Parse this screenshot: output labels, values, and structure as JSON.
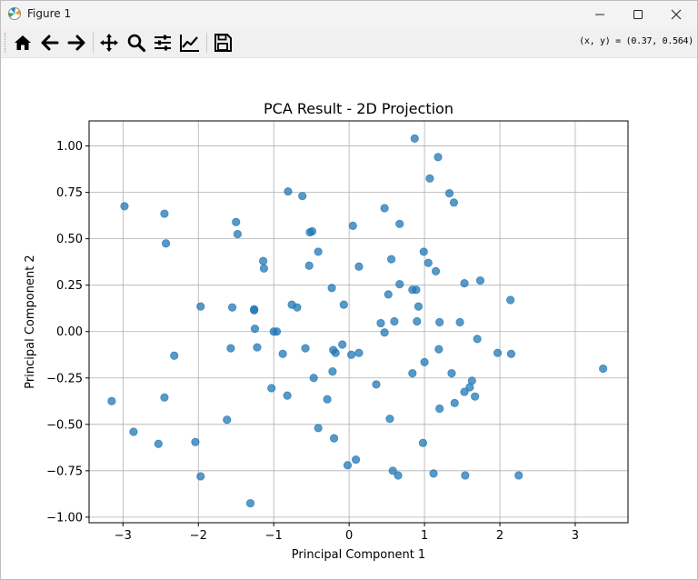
{
  "window": {
    "title": "Figure 1"
  },
  "toolbar": {
    "buttons": [
      {
        "name": "home-icon",
        "tooltip": "Home"
      },
      {
        "name": "back-icon",
        "tooltip": "Back"
      },
      {
        "name": "forward-icon",
        "tooltip": "Forward"
      },
      {
        "name": "pan-icon",
        "tooltip": "Pan"
      },
      {
        "name": "zoom-icon",
        "tooltip": "Zoom"
      },
      {
        "name": "subplots-icon",
        "tooltip": "Subplots"
      },
      {
        "name": "customize-icon",
        "tooltip": "Customize"
      },
      {
        "name": "save-icon",
        "tooltip": "Save"
      }
    ],
    "coordinates": "(x, y) = (0.37, 0.564)"
  },
  "colors": {
    "marker": "#1f77b4",
    "grid": "#b0b0b0",
    "axes": "#000000"
  },
  "chart_data": {
    "type": "scatter",
    "title": "PCA Result - 2D Projection",
    "xlabel": "Principal Component 1",
    "ylabel": "Principal Component 2",
    "xlim": [
      -3.45,
      3.7
    ],
    "ylim": [
      -1.03,
      1.135
    ],
    "xticks": [
      -3,
      -2,
      -1,
      0,
      1,
      2,
      3
    ],
    "xtick_labels": [
      "−3",
      "−2",
      "−1",
      "0",
      "1",
      "2",
      "3"
    ],
    "yticks": [
      -1.0,
      -0.75,
      -0.5,
      -0.25,
      0.0,
      0.25,
      0.5,
      0.75,
      1.0
    ],
    "ytick_labels": [
      "−1.00",
      "−0.75",
      "−0.50",
      "−0.25",
      "0.00",
      "0.25",
      "0.50",
      "0.75",
      "1.00"
    ],
    "grid": true,
    "marker_alpha": 0.75,
    "points": [
      [
        -2.98,
        0.675
      ],
      [
        -2.45,
        0.635
      ],
      [
        -2.43,
        0.475
      ],
      [
        -1.5,
        0.59
      ],
      [
        -1.48,
        0.525
      ],
      [
        -1.14,
        0.38
      ],
      [
        -1.13,
        0.34
      ],
      [
        -0.81,
        0.755
      ],
      [
        -0.62,
        0.73
      ],
      [
        -0.52,
        0.535
      ],
      [
        -0.49,
        0.54
      ],
      [
        -0.53,
        0.355
      ],
      [
        -0.41,
        0.43
      ],
      [
        0.05,
        0.57
      ],
      [
        0.13,
        0.35
      ],
      [
        0.47,
        0.665
      ],
      [
        0.56,
        0.39
      ],
      [
        0.67,
        0.58
      ],
      [
        0.87,
        1.04
      ],
      [
        1.07,
        0.825
      ],
      [
        1.18,
        0.94
      ],
      [
        1.33,
        0.745
      ],
      [
        1.39,
        0.695
      ],
      [
        0.99,
        0.43
      ],
      [
        1.05,
        0.37
      ],
      [
        1.15,
        0.325
      ],
      [
        1.53,
        0.26
      ],
      [
        1.74,
        0.275
      ],
      [
        0.67,
        0.255
      ],
      [
        0.84,
        0.225
      ],
      [
        0.89,
        0.225
      ],
      [
        0.52,
        0.2
      ],
      [
        2.14,
        0.17
      ],
      [
        -1.97,
        0.135
      ],
      [
        -1.55,
        0.13
      ],
      [
        -1.26,
        0.12
      ],
      [
        -1.26,
        0.115
      ],
      [
        -0.76,
        0.145
      ],
      [
        -0.69,
        0.13
      ],
      [
        -0.23,
        0.235
      ],
      [
        -0.07,
        0.145
      ],
      [
        0.92,
        0.135
      ],
      [
        0.42,
        0.045
      ],
      [
        0.6,
        0.055
      ],
      [
        0.9,
        0.055
      ],
      [
        1.2,
        0.05
      ],
      [
        1.47,
        0.05
      ],
      [
        -1.25,
        0.015
      ],
      [
        -1.0,
        0.0
      ],
      [
        -0.96,
        0.0
      ],
      [
        0.47,
        -0.005
      ],
      [
        1.7,
        -0.04
      ],
      [
        -2.32,
        -0.13
      ],
      [
        -1.57,
        -0.09
      ],
      [
        -1.22,
        -0.085
      ],
      [
        -0.88,
        -0.12
      ],
      [
        -0.58,
        -0.09
      ],
      [
        -0.21,
        -0.1
      ],
      [
        -0.18,
        -0.115
      ],
      [
        -0.09,
        -0.07
      ],
      [
        0.03,
        -0.125
      ],
      [
        0.13,
        -0.115
      ],
      [
        1.19,
        -0.095
      ],
      [
        1.97,
        -0.115
      ],
      [
        2.15,
        -0.12
      ],
      [
        1.0,
        -0.165
      ],
      [
        -0.22,
        -0.215
      ],
      [
        -0.47,
        -0.25
      ],
      [
        0.84,
        -0.225
      ],
      [
        1.36,
        -0.225
      ],
      [
        3.37,
        -0.2
      ],
      [
        1.63,
        -0.265
      ],
      [
        -1.03,
        -0.305
      ],
      [
        -0.82,
        -0.345
      ],
      [
        0.36,
        -0.285
      ],
      [
        1.6,
        -0.3
      ],
      [
        1.53,
        -0.325
      ],
      [
        -2.45,
        -0.355
      ],
      [
        -3.15,
        -0.375
      ],
      [
        -0.29,
        -0.365
      ],
      [
        1.67,
        -0.35
      ],
      [
        1.4,
        -0.385
      ],
      [
        1.2,
        -0.415
      ],
      [
        -1.62,
        -0.475
      ],
      [
        -0.41,
        -0.52
      ],
      [
        0.54,
        -0.47
      ],
      [
        -2.86,
        -0.54
      ],
      [
        -2.53,
        -0.605
      ],
      [
        -2.04,
        -0.595
      ],
      [
        -0.2,
        -0.575
      ],
      [
        0.98,
        -0.6
      ],
      [
        -0.02,
        -0.72
      ],
      [
        0.09,
        -0.69
      ],
      [
        0.58,
        -0.75
      ],
      [
        0.65,
        -0.775
      ],
      [
        1.12,
        -0.765
      ],
      [
        1.54,
        -0.775
      ],
      [
        2.25,
        -0.775
      ],
      [
        -1.97,
        -0.78
      ],
      [
        -1.31,
        -0.925
      ]
    ]
  }
}
